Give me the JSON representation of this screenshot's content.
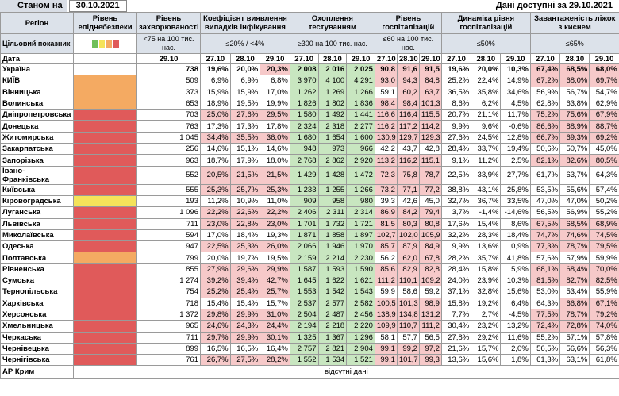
{
  "header": {
    "as_of_label": "Станом на",
    "as_of_date": "30.10.2021",
    "data_label": "Дані доступні за",
    "data_date": "29.10.2021"
  },
  "columns": [
    "Регіон",
    "Рівень епіднебезпеки",
    "Рівень захворюваності",
    "Коефіцієнт виявлення випадків інфікування",
    "Охоплення тестуванням",
    "Рівень госпіталізацій",
    "Динаміка рівня госпіталізацій",
    "Завантаженість ліжок з киснем"
  ],
  "target": {
    "label": "Цільовий показник",
    "values": [
      "<75 на 100 тис. нас.",
      "≤20% / <4%",
      "≥300 на 100 тис. нас.",
      "≤60 на 100 тис. нас.",
      "≤50%",
      "≤65%"
    ]
  },
  "dates": {
    "label": "Дата",
    "values": [
      "29.10",
      "27.10",
      "28.10",
      "29.10",
      "27.10",
      "28.10",
      "29.10",
      "27.10",
      "28.10",
      "29.10",
      "27.10",
      "28.10",
      "29.10",
      "27.10",
      "28.10",
      "29.10"
    ]
  },
  "highlight_colors": {
    "r": "#f6c9c9",
    "g": "#c8e6c0"
  },
  "rows": [
    {
      "region": "Україна",
      "cells": [
        "738",
        "19,6%",
        "20,0%",
        "20,3%",
        "2 008",
        "2 016",
        "2 025",
        "90,8",
        "91,6",
        "91,5",
        "19,6%",
        "20,0%",
        "10,3%",
        "67,4%",
        "68,5%",
        "68,0%"
      ],
      "highlight": "--rgggrrr---rrr"
    },
    {
      "region": "КИЇВ",
      "level_color": "#f4aa62",
      "cells": [
        "509",
        "6,9%",
        "6,9%",
        "6,8%",
        "3 970",
        "4 100",
        "4 291",
        "93,0",
        "94,3",
        "84,8",
        "25,2%",
        "22,4%",
        "14,9%",
        "67,2%",
        "68,0%",
        "69,7%"
      ],
      "highlight": "---gggrrr---rrr"
    },
    {
      "region": "Вінницька",
      "level_color": "#f4aa62",
      "cells": [
        "373",
        "15,9%",
        "15,9%",
        "17,0%",
        "1 262",
        "1 269",
        "1 266",
        "59,1",
        "60,2",
        "63,7",
        "36,5%",
        "35,8%",
        "34,6%",
        "56,9%",
        "56,7%",
        "54,7%"
      ],
      "highlight": "---ggg-rr------"
    },
    {
      "region": "Волинська",
      "level_color": "#f4aa62",
      "cells": [
        "653",
        "18,9%",
        "19,5%",
        "19,9%",
        "1 826",
        "1 802",
        "1 836",
        "98,4",
        "98,4",
        "101,3",
        "8,6%",
        "6,2%",
        "4,5%",
        "62,8%",
        "63,8%",
        "62,9%"
      ],
      "highlight": "---gggrrr------"
    },
    {
      "region": "Дніпропетровська",
      "level_color": "#e05a5a",
      "cells": [
        "703",
        "25,0%",
        "27,6%",
        "29,5%",
        "1 580",
        "1 492",
        "1 441",
        "116,6",
        "116,4",
        "115,5",
        "20,7%",
        "21,1%",
        "11,7%",
        "75,2%",
        "75,6%",
        "67,9%"
      ],
      "highlight": "rrrgggrrr---rrr"
    },
    {
      "region": "Донецька",
      "level_color": "#e05a5a",
      "cells": [
        "763",
        "17,3%",
        "17,3%",
        "17,8%",
        "2 324",
        "2 318",
        "2 277",
        "116,2",
        "117,2",
        "114,2",
        "9,9%",
        "9,6%",
        "-0,6%",
        "86,6%",
        "88,9%",
        "88,7%"
      ],
      "highlight": "---gggrrr---rrr"
    },
    {
      "region": "Житомирська",
      "level_color": "#e05a5a",
      "cells": [
        "1 045",
        "34,4%",
        "35,5%",
        "36,0%",
        "1 680",
        "1 654",
        "1 600",
        "130,9",
        "129,7",
        "129,3",
        "27,6%",
        "24,5%",
        "12,8%",
        "66,7%",
        "69,3%",
        "69,2%"
      ],
      "highlight": "rrrgggrrr---rrr"
    },
    {
      "region": "Закарпатська",
      "level_color": "#e05a5a",
      "cells": [
        "256",
        "14,6%",
        "15,1%",
        "14,6%",
        "948",
        "973",
        "966",
        "42,2",
        "43,7",
        "42,8",
        "28,4%",
        "33,7%",
        "19,4%",
        "50,6%",
        "50,7%",
        "45,0%"
      ],
      "highlight": "---ggg---------"
    },
    {
      "region": "Запорізька",
      "level_color": "#e05a5a",
      "cells": [
        "963",
        "18,7%",
        "17,9%",
        "18,0%",
        "2 768",
        "2 862",
        "2 920",
        "113,2",
        "116,2",
        "115,1",
        "9,1%",
        "11,2%",
        "2,5%",
        "82,1%",
        "82,6%",
        "80,5%"
      ],
      "highlight": "---gggrrr---rrr"
    },
    {
      "region": "Івано-Франківська",
      "level_color": "#e05a5a",
      "cells": [
        "552",
        "20,5%",
        "21,5%",
        "21,5%",
        "1 429",
        "1 428",
        "1 472",
        "72,3",
        "75,8",
        "78,7",
        "22,5%",
        "33,9%",
        "27,7%",
        "61,7%",
        "63,7%",
        "64,3%"
      ],
      "highlight": "rrrgggrrr------"
    },
    {
      "region": "Київська",
      "level_color": "#e05a5a",
      "cells": [
        "555",
        "25,3%",
        "25,7%",
        "25,3%",
        "1 233",
        "1 255",
        "1 266",
        "73,2",
        "77,1",
        "77,2",
        "38,8%",
        "43,1%",
        "25,8%",
        "53,5%",
        "55,6%",
        "57,4%"
      ],
      "highlight": "rrrgggrrr------"
    },
    {
      "region": "Кіровоградська",
      "level_color": "#f5e35a",
      "cells": [
        "193",
        "11,2%",
        "10,9%",
        "11,0%",
        "909",
        "958",
        "980",
        "39,3",
        "42,6",
        "45,0",
        "32,7%",
        "36,7%",
        "33,5%",
        "47,0%",
        "47,0%",
        "50,2%"
      ],
      "highlight": "---ggg---------"
    },
    {
      "region": "Луганська",
      "level_color": "#e05a5a",
      "cells": [
        "1 096",
        "22,2%",
        "22,6%",
        "22,2%",
        "2 406",
        "2 311",
        "2 314",
        "86,9",
        "84,2",
        "79,4",
        "3,7%",
        "-1,4%",
        "-14,6%",
        "56,5%",
        "56,9%",
        "55,2%"
      ],
      "highlight": "rrrgggrrr------"
    },
    {
      "region": "Львівська",
      "level_color": "#e05a5a",
      "cells": [
        "711",
        "23,0%",
        "22,8%",
        "23,0%",
        "1 701",
        "1 732",
        "1 721",
        "81,5",
        "80,3",
        "80,8",
        "17,6%",
        "15,4%",
        "8,6%",
        "67,5%",
        "68,5%",
        "68,9%"
      ],
      "highlight": "rrrgggrrr---rrr"
    },
    {
      "region": "Миколаївська",
      "level_color": "#e05a5a",
      "cells": [
        "594",
        "17,0%",
        "18,4%",
        "19,3%",
        "1 871",
        "1 858",
        "1 897",
        "102,7",
        "102,0",
        "105,9",
        "32,2%",
        "28,3%",
        "18,4%",
        "74,7%",
        "74,6%",
        "74,5%"
      ],
      "highlight": "---gggrrr---rrr"
    },
    {
      "region": "Одеська",
      "level_color": "#e05a5a",
      "cells": [
        "947",
        "22,5%",
        "25,3%",
        "26,0%",
        "2 066",
        "1 946",
        "1 970",
        "85,7",
        "87,9",
        "84,9",
        "9,9%",
        "13,6%",
        "0,9%",
        "77,3%",
        "78,7%",
        "79,5%"
      ],
      "highlight": "rrrgggrrr---rrr"
    },
    {
      "region": "Полтавська",
      "level_color": "#f4aa62",
      "cells": [
        "799",
        "20,0%",
        "19,7%",
        "19,5%",
        "2 159",
        "2 214",
        "2 230",
        "56,2",
        "62,0",
        "67,8",
        "28,2%",
        "35,7%",
        "41,8%",
        "57,6%",
        "57,9%",
        "59,9%"
      ],
      "highlight": "---ggg-rr------"
    },
    {
      "region": "Рівненська",
      "level_color": "#e05a5a",
      "cells": [
        "855",
        "27,9%",
        "29,6%",
        "29,9%",
        "1 587",
        "1 593",
        "1 590",
        "85,6",
        "82,9",
        "82,8",
        "28,4%",
        "15,8%",
        "5,9%",
        "68,1%",
        "68,4%",
        "70,0%"
      ],
      "highlight": "rrrgggrrr---rrr"
    },
    {
      "region": "Сумська",
      "level_color": "#e05a5a",
      "cells": [
        "1 274",
        "39,2%",
        "39,4%",
        "42,7%",
        "1 645",
        "1 622",
        "1 621",
        "111,2",
        "110,1",
        "109,2",
        "24,0%",
        "23,9%",
        "10,3%",
        "81,5%",
        "82,7%",
        "82,5%"
      ],
      "highlight": "rrrgggrrr---rrr"
    },
    {
      "region": "Тернопільська",
      "level_color": "#e05a5a",
      "cells": [
        "754",
        "25,2%",
        "25,4%",
        "25,7%",
        "1 553",
        "1 542",
        "1 543",
        "59,9",
        "58,6",
        "59,2",
        "37,1%",
        "32,8%",
        "15,6%",
        "53,0%",
        "53,4%",
        "55,9%"
      ],
      "highlight": "rrrggg---------"
    },
    {
      "region": "Харківська",
      "level_color": "#e05a5a",
      "cells": [
        "718",
        "15,4%",
        "15,4%",
        "15,7%",
        "2 537",
        "2 577",
        "2 582",
        "100,5",
        "101,3",
        "98,9",
        "15,8%",
        "19,2%",
        "6,4%",
        "64,3%",
        "66,8%",
        "67,1%"
      ],
      "highlight": "---gggrrr----rr"
    },
    {
      "region": "Херсонська",
      "level_color": "#e05a5a",
      "cells": [
        "1 372",
        "29,8%",
        "29,9%",
        "31,0%",
        "2 504",
        "2 487",
        "2 456",
        "138,9",
        "134,8",
        "131,2",
        "7,7%",
        "2,7%",
        "-4,5%",
        "77,5%",
        "78,7%",
        "79,2%"
      ],
      "highlight": "rrrgggrrr---rrr"
    },
    {
      "region": "Хмельницька",
      "level_color": "#e05a5a",
      "cells": [
        "965",
        "24,6%",
        "24,3%",
        "24,4%",
        "2 194",
        "2 218",
        "2 220",
        "109,9",
        "110,7",
        "111,2",
        "30,4%",
        "23,2%",
        "13,2%",
        "72,4%",
        "72,8%",
        "74,0%"
      ],
      "highlight": "rrrgggrrr---rrr"
    },
    {
      "region": "Черкаська",
      "level_color": "#e05a5a",
      "cells": [
        "711",
        "29,7%",
        "29,9%",
        "30,1%",
        "1 325",
        "1 367",
        "1 296",
        "58,1",
        "57,7",
        "56,5",
        "27,8%",
        "29,2%",
        "11,6%",
        "55,2%",
        "57,1%",
        "57,8%"
      ],
      "highlight": "rrrggg---------"
    },
    {
      "region": "Чернівецька",
      "level_color": "#e05a5a",
      "cells": [
        "899",
        "16,5%",
        "16,5%",
        "16,4%",
        "2 757",
        "2 821",
        "2 904",
        "99,1",
        "99,2",
        "97,2",
        "21,6%",
        "15,7%",
        "2,0%",
        "56,5%",
        "56,6%",
        "56,3%"
      ],
      "highlight": "---gggrrr------"
    },
    {
      "region": "Чернігівська",
      "level_color": "#e05a5a",
      "cells": [
        "761",
        "26,7%",
        "27,5%",
        "28,2%",
        "1 552",
        "1 534",
        "1 521",
        "99,1",
        "101,7",
        "99,3",
        "13,6%",
        "15,6%",
        "1,8%",
        "61,3%",
        "63,1%",
        "61,8%"
      ],
      "highlight": "rrrgggrrr------"
    }
  ],
  "missing": {
    "region": "АР Крим",
    "text": "відсутні дані"
  }
}
